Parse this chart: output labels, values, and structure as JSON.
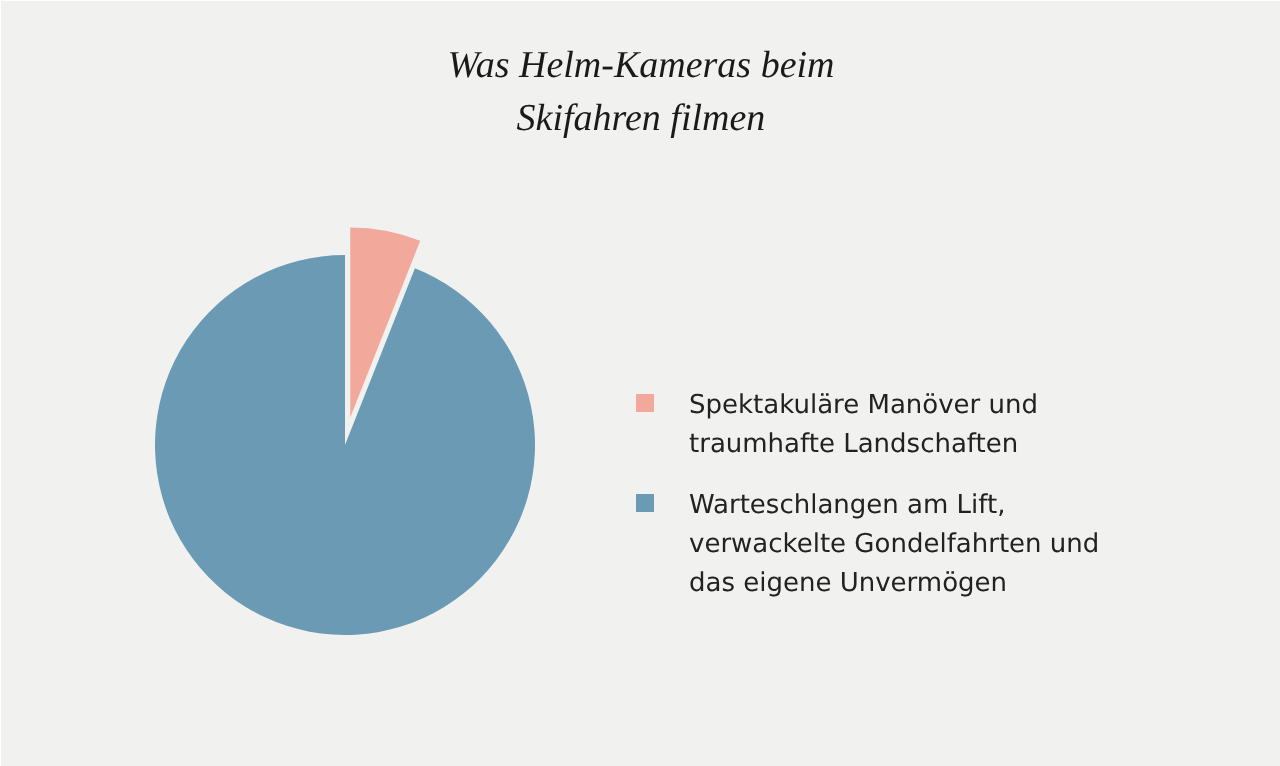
{
  "chart_data": {
    "type": "pie",
    "title": "Was Helm-Kameras beim Skifahren filmen",
    "categories": [
      "Spektakuläre Manöver und traumhafte Landschaften",
      "Warteschlangen am Lift, verwackelte Gondelfahrten und das eigene Unvermögen"
    ],
    "values": [
      6,
      94
    ],
    "colors": [
      "#f2a99c",
      "#6b9bb4"
    ],
    "legend": "right"
  }
}
